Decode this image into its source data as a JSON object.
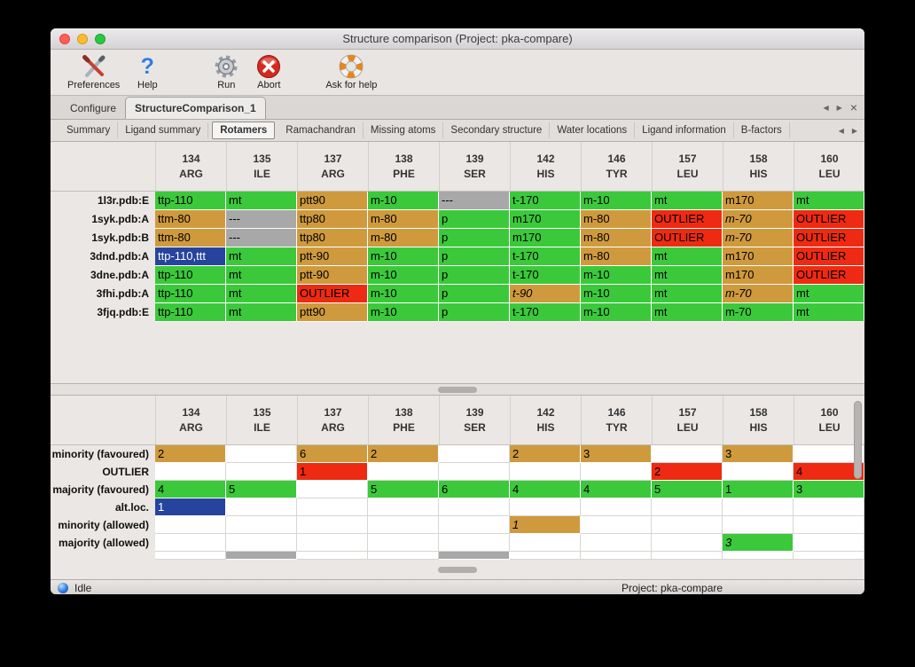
{
  "window": {
    "title": "Structure comparison (Project: pka-compare)"
  },
  "toolbar": {
    "items": [
      {
        "label": "Preferences"
      },
      {
        "label": "Help"
      },
      {
        "label": "Run"
      },
      {
        "label": "Abort"
      },
      {
        "label": "Ask for help"
      }
    ]
  },
  "nav": {
    "prev": "◀",
    "next": "▶",
    "close": "×"
  },
  "document_tabs": [
    {
      "label": "Configure",
      "active": false
    },
    {
      "label": "StructureComparison_1",
      "active": true
    }
  ],
  "view_tabs": [
    {
      "label": "Summary",
      "active": false
    },
    {
      "label": "Ligand summary",
      "active": false
    },
    {
      "label": "Rotamers",
      "active": true
    },
    {
      "label": "Ramachandran",
      "active": false
    },
    {
      "label": "Missing atoms",
      "active": false
    },
    {
      "label": "Secondary structure",
      "active": false
    },
    {
      "label": "Water locations",
      "active": false
    },
    {
      "label": "Ligand information",
      "active": false
    },
    {
      "label": "B-factors",
      "active": false
    }
  ],
  "columns": [
    {
      "num": "134",
      "res": "ARG"
    },
    {
      "num": "135",
      "res": "ILE"
    },
    {
      "num": "137",
      "res": "ARG"
    },
    {
      "num": "138",
      "res": "PHE"
    },
    {
      "num": "139",
      "res": "SER"
    },
    {
      "num": "142",
      "res": "HIS"
    },
    {
      "num": "146",
      "res": "TYR"
    },
    {
      "num": "157",
      "res": "LEU"
    },
    {
      "num": "158",
      "res": "HIS"
    },
    {
      "num": "160",
      "res": "LEU"
    }
  ],
  "colors": {
    "green": "#3bc93b",
    "tan": "#cf9a3d",
    "red": "#ee2b12",
    "gray": "#a8a8a8",
    "blue": "#26449e"
  },
  "upper_table": {
    "rows": [
      {
        "label": "1l3r.pdb:E",
        "cells": [
          {
            "text": "ttp-110",
            "color": "green"
          },
          {
            "text": "mt",
            "color": "green"
          },
          {
            "text": "ptt90",
            "color": "tan"
          },
          {
            "text": "m-10",
            "color": "green"
          },
          {
            "text": "---",
            "color": "gray"
          },
          {
            "text": "t-170",
            "color": "green"
          },
          {
            "text": "m-10",
            "color": "green"
          },
          {
            "text": "mt",
            "color": "green"
          },
          {
            "text": "m170",
            "color": "tan"
          },
          {
            "text": "mt",
            "color": "green"
          }
        ]
      },
      {
        "label": "1syk.pdb:A",
        "cells": [
          {
            "text": "ttm-80",
            "color": "tan"
          },
          {
            "text": "---",
            "color": "gray"
          },
          {
            "text": "ttp80",
            "color": "tan"
          },
          {
            "text": "m-80",
            "color": "tan"
          },
          {
            "text": "p",
            "color": "green"
          },
          {
            "text": "m170",
            "color": "green"
          },
          {
            "text": "m-80",
            "color": "tan"
          },
          {
            "text": "OUTLIER",
            "color": "red"
          },
          {
            "text": "m-70",
            "color": "tan",
            "italic": true
          },
          {
            "text": "OUTLIER",
            "color": "red"
          }
        ]
      },
      {
        "label": "1syk.pdb:B",
        "cells": [
          {
            "text": "ttm-80",
            "color": "tan"
          },
          {
            "text": "---",
            "color": "gray"
          },
          {
            "text": "ttp80",
            "color": "tan"
          },
          {
            "text": "m-80",
            "color": "tan"
          },
          {
            "text": "p",
            "color": "green"
          },
          {
            "text": "m170",
            "color": "green"
          },
          {
            "text": "m-80",
            "color": "tan"
          },
          {
            "text": "OUTLIER",
            "color": "red"
          },
          {
            "text": "m-70",
            "color": "tan",
            "italic": true
          },
          {
            "text": "OUTLIER",
            "color": "red"
          }
        ]
      },
      {
        "label": "3dnd.pdb:A",
        "cells": [
          {
            "text": "ttp-110,ttt",
            "color": "blue"
          },
          {
            "text": "mt",
            "color": "green"
          },
          {
            "text": "ptt-90",
            "color": "tan"
          },
          {
            "text": "m-10",
            "color": "green"
          },
          {
            "text": "p",
            "color": "green"
          },
          {
            "text": "t-170",
            "color": "green"
          },
          {
            "text": "m-80",
            "color": "tan"
          },
          {
            "text": "mt",
            "color": "green"
          },
          {
            "text": "m170",
            "color": "tan"
          },
          {
            "text": "OUTLIER",
            "color": "red"
          }
        ]
      },
      {
        "label": "3dne.pdb:A",
        "cells": [
          {
            "text": "ttp-110",
            "color": "green"
          },
          {
            "text": "mt",
            "color": "green"
          },
          {
            "text": "ptt-90",
            "color": "tan"
          },
          {
            "text": "m-10",
            "color": "green"
          },
          {
            "text": "p",
            "color": "green"
          },
          {
            "text": "t-170",
            "color": "green"
          },
          {
            "text": "m-10",
            "color": "green"
          },
          {
            "text": "mt",
            "color": "green"
          },
          {
            "text": "m170",
            "color": "tan"
          },
          {
            "text": "OUTLIER",
            "color": "red"
          }
        ]
      },
      {
        "label": "3fhi.pdb:A",
        "cells": [
          {
            "text": "ttp-110",
            "color": "green"
          },
          {
            "text": "mt",
            "color": "green"
          },
          {
            "text": "OUTLIER",
            "color": "red"
          },
          {
            "text": "m-10",
            "color": "green"
          },
          {
            "text": "p",
            "color": "green"
          },
          {
            "text": "t-90",
            "color": "tan",
            "italic": true
          },
          {
            "text": "m-10",
            "color": "green"
          },
          {
            "text": "mt",
            "color": "green"
          },
          {
            "text": "m-70",
            "color": "tan",
            "italic": true
          },
          {
            "text": "mt",
            "color": "green"
          }
        ]
      },
      {
        "label": "3fjq.pdb:E",
        "cells": [
          {
            "text": "ttp-110",
            "color": "green"
          },
          {
            "text": "mt",
            "color": "green"
          },
          {
            "text": "ptt90",
            "color": "tan"
          },
          {
            "text": "m-10",
            "color": "green"
          },
          {
            "text": "p",
            "color": "green"
          },
          {
            "text": "t-170",
            "color": "green"
          },
          {
            "text": "m-10",
            "color": "green"
          },
          {
            "text": "mt",
            "color": "green"
          },
          {
            "text": "m-70",
            "color": "green"
          },
          {
            "text": "mt",
            "color": "green"
          }
        ]
      }
    ]
  },
  "lower_table": {
    "rows": [
      {
        "label": "minority (favoured)",
        "cells": [
          {
            "text": "2",
            "color": "tan"
          },
          {
            "text": "",
            "color": "none"
          },
          {
            "text": "6",
            "color": "tan"
          },
          {
            "text": "2",
            "color": "tan"
          },
          {
            "text": "",
            "color": "none"
          },
          {
            "text": "2",
            "color": "tan"
          },
          {
            "text": "3",
            "color": "tan"
          },
          {
            "text": "",
            "color": "none"
          },
          {
            "text": "3",
            "color": "tan"
          },
          {
            "text": "",
            "color": "none"
          }
        ]
      },
      {
        "label": "OUTLIER",
        "cells": [
          {
            "text": "",
            "color": "none"
          },
          {
            "text": "",
            "color": "none"
          },
          {
            "text": "1",
            "color": "red"
          },
          {
            "text": "",
            "color": "none"
          },
          {
            "text": "",
            "color": "none"
          },
          {
            "text": "",
            "color": "none"
          },
          {
            "text": "",
            "color": "none"
          },
          {
            "text": "2",
            "color": "red"
          },
          {
            "text": "",
            "color": "none"
          },
          {
            "text": "4",
            "color": "red"
          }
        ]
      },
      {
        "label": "majority (favoured)",
        "cells": [
          {
            "text": "4",
            "color": "green"
          },
          {
            "text": "5",
            "color": "green"
          },
          {
            "text": "",
            "color": "none"
          },
          {
            "text": "5",
            "color": "green"
          },
          {
            "text": "6",
            "color": "green"
          },
          {
            "text": "4",
            "color": "green"
          },
          {
            "text": "4",
            "color": "green"
          },
          {
            "text": "5",
            "color": "green"
          },
          {
            "text": "1",
            "color": "green"
          },
          {
            "text": "3",
            "color": "green"
          }
        ]
      },
      {
        "label": "alt.loc.",
        "cells": [
          {
            "text": "1",
            "color": "blue"
          },
          {
            "text": "",
            "color": "none"
          },
          {
            "text": "",
            "color": "none"
          },
          {
            "text": "",
            "color": "none"
          },
          {
            "text": "",
            "color": "none"
          },
          {
            "text": "",
            "color": "none"
          },
          {
            "text": "",
            "color": "none"
          },
          {
            "text": "",
            "color": "none"
          },
          {
            "text": "",
            "color": "none"
          },
          {
            "text": "",
            "color": "none"
          }
        ]
      },
      {
        "label": "minority (allowed)",
        "cells": [
          {
            "text": "",
            "color": "none"
          },
          {
            "text": "",
            "color": "none"
          },
          {
            "text": "",
            "color": "none"
          },
          {
            "text": "",
            "color": "none"
          },
          {
            "text": "",
            "color": "none"
          },
          {
            "text": "1",
            "color": "tan",
            "italic": true
          },
          {
            "text": "",
            "color": "none"
          },
          {
            "text": "",
            "color": "none"
          },
          {
            "text": "",
            "color": "none"
          },
          {
            "text": "",
            "color": "none"
          }
        ]
      },
      {
        "label": "majority (allowed)",
        "cells": [
          {
            "text": "",
            "color": "none"
          },
          {
            "text": "",
            "color": "none"
          },
          {
            "text": "",
            "color": "none"
          },
          {
            "text": "",
            "color": "none"
          },
          {
            "text": "",
            "color": "none"
          },
          {
            "text": "",
            "color": "none"
          },
          {
            "text": "",
            "color": "none"
          },
          {
            "text": "",
            "color": "none"
          },
          {
            "text": "3",
            "color": "green",
            "italic": true
          },
          {
            "text": "",
            "color": "none"
          }
        ]
      }
    ],
    "partial_row": {
      "cells": [
        {
          "text": "",
          "color": "none"
        },
        {
          "text": "",
          "color": "gray"
        },
        {
          "text": "",
          "color": "none"
        },
        {
          "text": "",
          "color": "none"
        },
        {
          "text": "",
          "color": "gray"
        },
        {
          "text": "",
          "color": "none"
        },
        {
          "text": "",
          "color": "none"
        },
        {
          "text": "",
          "color": "none"
        },
        {
          "text": "",
          "color": "none"
        },
        {
          "text": "",
          "color": "none"
        }
      ]
    }
  },
  "status_bar": {
    "status": "Idle",
    "project": "Project: pka-compare"
  }
}
